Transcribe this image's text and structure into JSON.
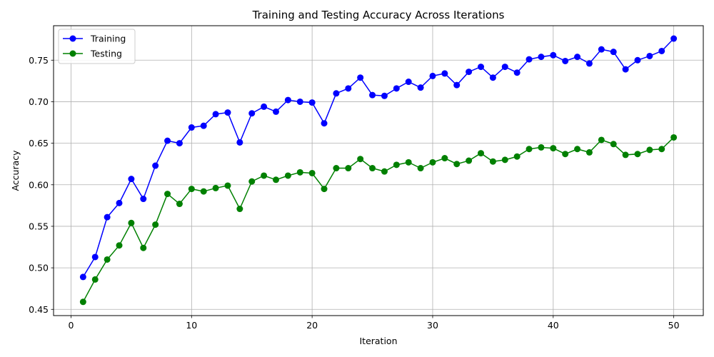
{
  "chart_data": {
    "type": "line",
    "title": "Training and Testing Accuracy Across Iterations",
    "xlabel": "Iteration",
    "ylabel": "Accuracy",
    "xlim": [
      -1.45,
      52.45
    ],
    "ylim": [
      0.4425,
      0.7915
    ],
    "xticks": [
      0,
      10,
      20,
      30,
      40,
      50
    ],
    "yticks": [
      0.45,
      0.5,
      0.55,
      0.6,
      0.65,
      0.7,
      0.75
    ],
    "grid": true,
    "legend_position": "top-left",
    "x": [
      1,
      2,
      3,
      4,
      5,
      6,
      7,
      8,
      9,
      10,
      11,
      12,
      13,
      14,
      15,
      16,
      17,
      18,
      19,
      20,
      21,
      22,
      23,
      24,
      25,
      26,
      27,
      28,
      29,
      30,
      31,
      32,
      33,
      34,
      35,
      36,
      37,
      38,
      39,
      40,
      41,
      42,
      43,
      44,
      45,
      46,
      47,
      48,
      49,
      50
    ],
    "series": [
      {
        "name": "Training",
        "color": "#0000ff",
        "values": [
          0.489,
          0.513,
          0.561,
          0.578,
          0.607,
          0.583,
          0.623,
          0.653,
          0.65,
          0.669,
          0.671,
          0.685,
          0.687,
          0.651,
          0.686,
          0.694,
          0.688,
          0.702,
          0.7,
          0.699,
          0.674,
          0.71,
          0.716,
          0.729,
          0.708,
          0.707,
          0.716,
          0.724,
          0.717,
          0.731,
          0.734,
          0.72,
          0.736,
          0.742,
          0.729,
          0.742,
          0.735,
          0.751,
          0.754,
          0.756,
          0.749,
          0.754,
          0.746,
          0.763,
          0.76,
          0.739,
          0.75,
          0.755,
          0.761,
          0.776
        ]
      },
      {
        "name": "Testing",
        "color": "#008000",
        "values": [
          0.459,
          0.486,
          0.51,
          0.527,
          0.554,
          0.524,
          0.552,
          0.589,
          0.577,
          0.595,
          0.592,
          0.596,
          0.599,
          0.571,
          0.604,
          0.611,
          0.606,
          0.611,
          0.615,
          0.614,
          0.595,
          0.62,
          0.62,
          0.631,
          0.62,
          0.616,
          0.624,
          0.627,
          0.62,
          0.627,
          0.632,
          0.625,
          0.629,
          0.638,
          0.628,
          0.63,
          0.634,
          0.643,
          0.645,
          0.644,
          0.637,
          0.643,
          0.639,
          0.654,
          0.649,
          0.636,
          0.637,
          0.642,
          0.643,
          0.657
        ]
      }
    ]
  }
}
